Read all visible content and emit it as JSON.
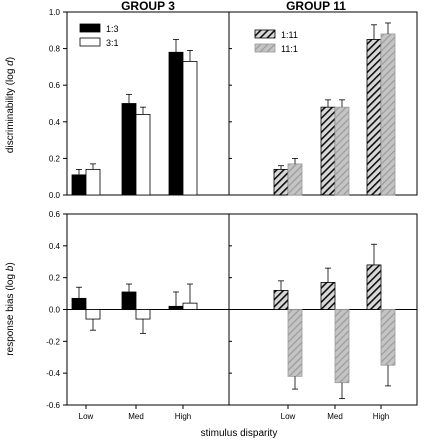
{
  "figure": {
    "xlabel": "stimulus disparity",
    "categories": [
      "Low",
      "Med",
      "High"
    ]
  },
  "chart_data": [
    {
      "type": "bar",
      "panel": "top-left",
      "title": "GROUP 3",
      "ylabel": "discriminability (log d)",
      "ylabel_main": "discriminability (log ",
      "ylabel_var": "d",
      "ylabel_end": ")",
      "ylim": [
        0,
        1.0
      ],
      "yticks": [
        0,
        0.2,
        0.4,
        0.6,
        0.8,
        1.0
      ],
      "ytick_labels": [
        "0.0",
        "0.2",
        "0.4",
        "0.6",
        "0.8",
        "1.0"
      ],
      "legend_position": "top-left",
      "categories": [
        "Low",
        "Med",
        "High"
      ],
      "series": [
        {
          "name": "1:3",
          "style": "black",
          "values": [
            0.11,
            0.5,
            0.78
          ],
          "errors": [
            0.03,
            0.05,
            0.07
          ]
        },
        {
          "name": "3:1",
          "style": "white",
          "values": [
            0.14,
            0.44,
            0.73
          ],
          "errors": [
            0.03,
            0.04,
            0.06
          ]
        }
      ]
    },
    {
      "type": "bar",
      "panel": "top-right",
      "title": "GROUP 11",
      "ylim": [
        0,
        1.0
      ],
      "legend_position": "top-left",
      "categories": [
        "Low",
        "Med",
        "High"
      ],
      "series": [
        {
          "name": "1:11",
          "style": "hatched-dark",
          "values": [
            0.14,
            0.48,
            0.85
          ],
          "errors": [
            0.02,
            0.04,
            0.08
          ]
        },
        {
          "name": "11:1",
          "style": "hatched-gray",
          "values": [
            0.17,
            0.48,
            0.88
          ],
          "errors": [
            0.03,
            0.04,
            0.06
          ]
        }
      ]
    },
    {
      "type": "bar",
      "panel": "bottom-left",
      "ylabel": "response bias (log b)",
      "ylabel_main": "response bias (log ",
      "ylabel_var": "b",
      "ylabel_end": ")",
      "ylim": [
        -0.6,
        0.6
      ],
      "yticks": [
        -0.6,
        -0.4,
        -0.2,
        0,
        0.2,
        0.4,
        0.6
      ],
      "ytick_labels": [
        "-0.6",
        "-0.4",
        "-0.2",
        "0.0",
        "0.2",
        "0.4",
        "0.6"
      ],
      "categories": [
        "Low",
        "Med",
        "High"
      ],
      "series": [
        {
          "name": "1:3",
          "style": "black",
          "values": [
            0.07,
            0.11,
            0.02
          ],
          "errors": [
            0.07,
            0.05,
            0.09
          ]
        },
        {
          "name": "3:1",
          "style": "white",
          "values": [
            -0.06,
            -0.06,
            0.04
          ],
          "errors": [
            0.07,
            0.09,
            0.12
          ]
        }
      ]
    },
    {
      "type": "bar",
      "panel": "bottom-right",
      "ylim": [
        -0.6,
        0.6
      ],
      "categories": [
        "Low",
        "Med",
        "High"
      ],
      "series": [
        {
          "name": "1:11",
          "style": "hatched-dark",
          "values": [
            0.12,
            0.17,
            0.28
          ],
          "errors": [
            0.06,
            0.09,
            0.13
          ]
        },
        {
          "name": "11:1",
          "style": "hatched-gray",
          "values": [
            -0.42,
            -0.46,
            -0.35
          ],
          "errors": [
            0.08,
            0.1,
            0.13
          ]
        }
      ]
    }
  ]
}
